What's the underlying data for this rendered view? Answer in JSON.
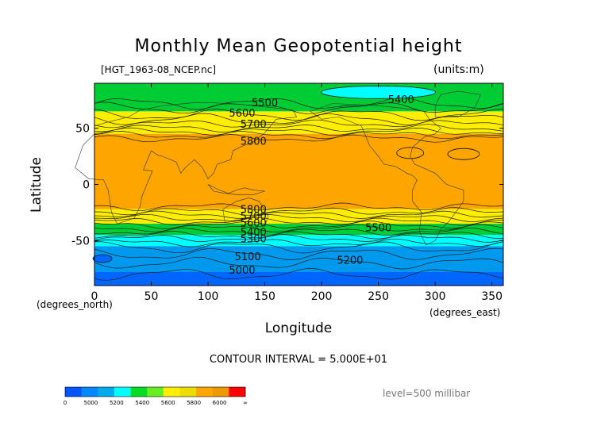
{
  "header": {
    "title": "Monthly Mean Geopotential height",
    "file_label": "[HGT_1963-08_NCEP.nc]",
    "units_label": "(units:m)"
  },
  "footer": {
    "contour_interval": "CONTOUR INTERVAL = 5.000E+01",
    "level": "level=500 millibar"
  },
  "chart_data": {
    "type": "heatmap",
    "title": "Monthly Mean Geopotential height",
    "xlabel": "Longitude",
    "ylabel": "Latitude",
    "x_unit_label": "(degrees_east)",
    "y_unit_label": "(degrees_north)",
    "xlim": [
      0,
      360
    ],
    "ylim": [
      -90,
      90
    ],
    "x_ticks": [
      0,
      50,
      100,
      150,
      200,
      250,
      300,
      350
    ],
    "y_ticks": [
      -50,
      0,
      50
    ],
    "bands": [
      {
        "lat_top": 90,
        "lat_bottom": 65,
        "value_range": "5400-5600",
        "color": "#00cc33"
      },
      {
        "lat_top": 65,
        "lat_bottom": 45,
        "value_range": "5600-5800",
        "color": "#ffee00"
      },
      {
        "lat_top": 45,
        "lat_bottom": -22,
        "value_range": "5800-6000",
        "color": "#ffa500"
      },
      {
        "lat_top": -22,
        "lat_bottom": -35,
        "value_range": "5600-5800",
        "color": "#ffee00"
      },
      {
        "lat_top": -35,
        "lat_bottom": -45,
        "value_range": "5400-5600",
        "color": "#00cc33"
      },
      {
        "lat_top": -45,
        "lat_bottom": -55,
        "value_range": "5200-5400",
        "color": "#00ffff"
      },
      {
        "lat_top": -55,
        "lat_bottom": -78,
        "value_range": "5000-5200",
        "color": "#0099ee"
      },
      {
        "lat_top": -78,
        "lat_bottom": -90,
        "value_range": "<5000",
        "color": "#0066ff"
      }
    ],
    "contour_labels": [
      {
        "text": "5500",
        "lon": 150,
        "lat": 73
      },
      {
        "text": "5400",
        "lon": 270,
        "lat": 76
      },
      {
        "text": "5600",
        "lon": 130,
        "lat": 64
      },
      {
        "text": "5700",
        "lon": 140,
        "lat": 54
      },
      {
        "text": "5800",
        "lon": 140,
        "lat": 39
      },
      {
        "text": "5800",
        "lon": 140,
        "lat": -22
      },
      {
        "text": "5700",
        "lon": 140,
        "lat": -28
      },
      {
        "text": "5600",
        "lon": 140,
        "lat": -34
      },
      {
        "text": "5500",
        "lon": 250,
        "lat": -38
      },
      {
        "text": "5400",
        "lon": 140,
        "lat": -42
      },
      {
        "text": "5300",
        "lon": 140,
        "lat": -48
      },
      {
        "text": "5100",
        "lon": 135,
        "lat": -64
      },
      {
        "text": "5200",
        "lon": 225,
        "lat": -67
      },
      {
        "text": "5000",
        "lon": 130,
        "lat": -76
      }
    ],
    "colorbar": {
      "labels": [
        "0",
        "5000",
        "5200",
        "5400",
        "5600",
        "5800",
        "6000",
        "∞"
      ],
      "colors": [
        "#0055ff",
        "#0088ff",
        "#00aaee",
        "#00ffff",
        "#00dd22",
        "#66ee22",
        "#ffee00",
        "#eedd00",
        "#ffa500",
        "#ee9900",
        "#ff0000"
      ]
    }
  }
}
